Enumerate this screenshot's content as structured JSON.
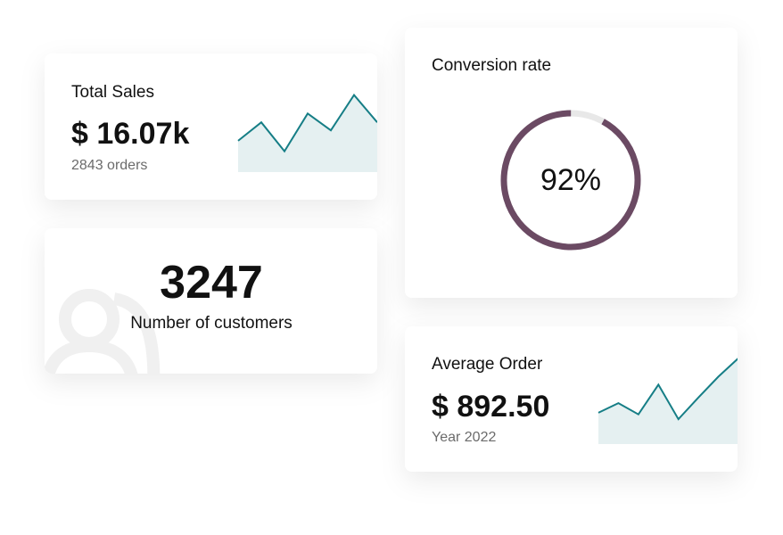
{
  "total_sales": {
    "title": "Total Sales",
    "amount": "$ 16.07k",
    "note": "2843 orders",
    "trend": [
      39,
      62,
      26,
      73,
      52,
      96,
      62
    ]
  },
  "customers": {
    "count": "3247",
    "label": "Number of customers"
  },
  "conversion": {
    "title": "Conversion rate",
    "value": 92,
    "value_label": "92%"
  },
  "average_order": {
    "title": "Average Order",
    "amount": "$ 892.50",
    "note": "Year 2022",
    "trend": [
      39,
      51,
      37,
      74,
      31,
      58,
      84,
      107
    ]
  }
}
